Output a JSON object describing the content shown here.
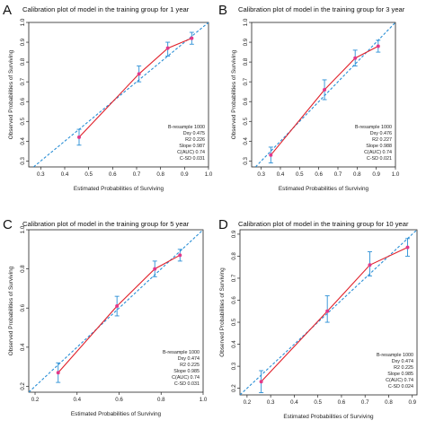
{
  "colors": {
    "reference_line": "#2a8fd6",
    "model_line": "#e0202a",
    "error_bar": "#2a8fd6",
    "point": "#e23a8a",
    "frame": "#222222"
  },
  "chart_data": [
    {
      "panel_letter": "A",
      "type": "line",
      "title": "Calibration plot of model in the training group for 1 year",
      "xlabel": "Estimated Probabilities of Surviving",
      "ylabel": "Observed Probabilities of Surviving",
      "xlim": [
        0.25,
        1.0
      ],
      "ylim": [
        0.27,
        1.0
      ],
      "xticks": [
        "0.3",
        "0.4",
        "0.5",
        "0.6",
        "0.7",
        "0.8",
        "0.9",
        "1.0"
      ],
      "yticks": [
        "0.3",
        "0.4",
        "0.5",
        "0.6",
        "0.7",
        "0.8",
        "0.9",
        "1.0"
      ],
      "reference_line": "diagonal",
      "x": [
        0.46,
        0.71,
        0.83,
        0.93
      ],
      "y": [
        0.42,
        0.74,
        0.87,
        0.92
      ],
      "y_lower": [
        0.38,
        0.7,
        0.83,
        0.89
      ],
      "y_upper": [
        0.46,
        0.78,
        0.9,
        0.95
      ],
      "stats": [
        "B-resample 1000",
        "Dxy 0.475",
        "R2 0.226",
        "Slope 0.987",
        "C(AUC) 0.74",
        "C-SD 0.031"
      ]
    },
    {
      "panel_letter": "B",
      "type": "line",
      "title": "Calibration plot of model in the training group for 3 year",
      "xlabel": "Estimated Probabilities of Surviving",
      "ylabel": "Observed Probabilities of Surviving",
      "xlim": [
        0.25,
        1.0
      ],
      "ylim": [
        0.27,
        1.0
      ],
      "xticks": [
        "0.3",
        "0.4",
        "0.5",
        "0.6",
        "0.7",
        "0.8",
        "0.9",
        "1.0"
      ],
      "yticks": [
        "0.3",
        "0.4",
        "0.5",
        "0.6",
        "0.7",
        "0.8",
        "0.9",
        "1.0"
      ],
      "reference_line": "diagonal",
      "x": [
        0.35,
        0.63,
        0.79,
        0.91
      ],
      "y": [
        0.33,
        0.66,
        0.82,
        0.88
      ],
      "y_lower": [
        0.29,
        0.61,
        0.78,
        0.85
      ],
      "y_upper": [
        0.37,
        0.71,
        0.86,
        0.91
      ],
      "stats": [
        "B-resample 1000",
        "Dxy 0.476",
        "R2 0.227",
        "Slope 0.988",
        "C(AUC) 0.74",
        "C-SD 0.021"
      ]
    },
    {
      "panel_letter": "C",
      "type": "line",
      "title": "Calibration plot of model in the training group for 5 year",
      "xlabel": "Estimated Probabilities of Surviving",
      "ylabel": "Observed Probabilities of Surviving",
      "xlim": [
        0.17,
        1.0
      ],
      "ylim": [
        0.17,
        1.0
      ],
      "xticks": [
        "0.2",
        "0.4",
        "0.6",
        "0.8",
        "1.0"
      ],
      "yticks": [
        "0.2",
        "0.4",
        "0.6",
        "0.8",
        "1.0"
      ],
      "reference_line": "diagonal",
      "x": [
        0.31,
        0.59,
        0.77,
        0.89
      ],
      "y": [
        0.27,
        0.61,
        0.8,
        0.87
      ],
      "y_lower": [
        0.22,
        0.56,
        0.76,
        0.84
      ],
      "y_upper": [
        0.32,
        0.66,
        0.84,
        0.9
      ],
      "stats": [
        "B-resample 1000",
        "Dxy 0.474",
        "R2 0.225",
        "Slope 0.985",
        "C(AUC) 0.74",
        "C-SD 0.031"
      ]
    },
    {
      "panel_letter": "D",
      "type": "line",
      "title": "Calibration plot of model in the training group for 10 year",
      "xlabel": "Estimated Probabilities of Surviving",
      "ylabel": "Observed Probabilities of Surviving",
      "xlim": [
        0.17,
        0.92
      ],
      "ylim": [
        0.17,
        0.92
      ],
      "xticks": [
        "0.2",
        "0.3",
        "0.4",
        "0.5",
        "0.6",
        "0.7",
        "0.8",
        "0.9"
      ],
      "yticks": [
        "0.2",
        "0.3",
        "0.4",
        "0.5",
        "0.6",
        "0.7",
        "0.8",
        "0.9"
      ],
      "reference_line": "diagonal",
      "x": [
        0.26,
        0.54,
        0.72,
        0.88
      ],
      "y": [
        0.23,
        0.55,
        0.76,
        0.84
      ],
      "y_lower": [
        0.18,
        0.5,
        0.71,
        0.8
      ],
      "y_upper": [
        0.28,
        0.62,
        0.82,
        0.88
      ],
      "stats": [
        "B-resample 1000",
        "Dxy 0.474",
        "R2 0.225",
        "Slope 0.985",
        "C(AUC) 0.74",
        "C-SD 0.024"
      ]
    }
  ]
}
